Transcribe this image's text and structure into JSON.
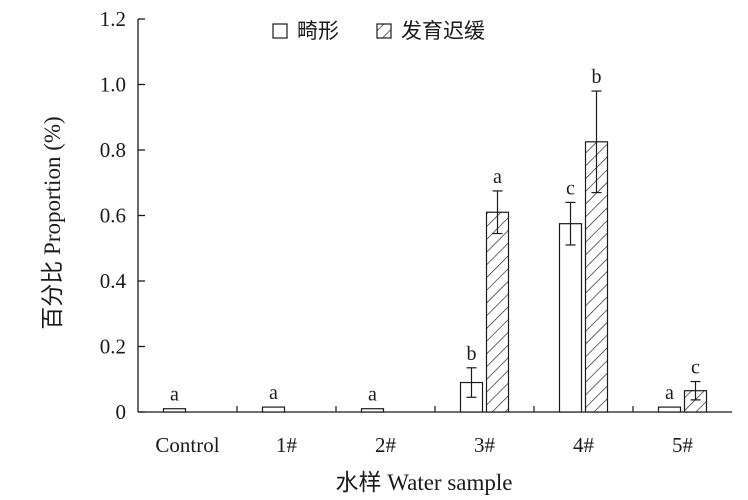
{
  "chart_data": {
    "type": "bar",
    "title": "",
    "xlabel": "水样 Water sample",
    "ylabel": "百分比 Proportion (%)",
    "categories": [
      "Control",
      "1#",
      "2#",
      "3#",
      "4#",
      "5#"
    ],
    "ylim": [
      0,
      1.2
    ],
    "yticks": [
      "0",
      "0.2",
      "0.4",
      "0.6",
      "0.8",
      "1.0",
      "1.2"
    ],
    "grid": false,
    "legend_position": "top-center",
    "series": [
      {
        "name": "畸形",
        "pattern": "open",
        "values": [
          0.01,
          0.015,
          0.01,
          0.09,
          0.575,
          0.015
        ],
        "errors": [
          null,
          null,
          null,
          0.045,
          0.065,
          null
        ],
        "labels": [
          "a",
          "a",
          "a",
          "b",
          "c",
          "a"
        ]
      },
      {
        "name": "发育迟缓",
        "pattern": "hatched",
        "values": [
          0,
          0,
          0,
          0.61,
          0.825,
          0.065
        ],
        "errors": [
          null,
          null,
          null,
          0.065,
          0.155,
          0.028
        ],
        "labels": [
          "",
          "",
          "",
          "a",
          "b",
          "c"
        ]
      }
    ]
  }
}
